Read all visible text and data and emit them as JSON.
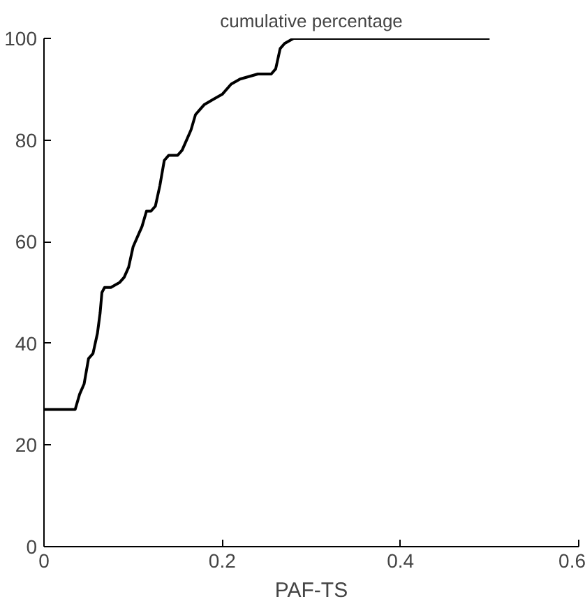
{
  "chart_data": {
    "type": "line",
    "title": "cumulative percentage",
    "xlabel": "PAF-TS",
    "x": [
      0,
      0.035,
      0.04,
      0.045,
      0.05,
      0.055,
      0.06,
      0.063,
      0.065,
      0.068,
      0.075,
      0.085,
      0.09,
      0.095,
      0.1,
      0.105,
      0.11,
      0.115,
      0.12,
      0.125,
      0.13,
      0.135,
      0.14,
      0.15,
      0.155,
      0.16,
      0.165,
      0.17,
      0.175,
      0.18,
      0.19,
      0.2,
      0.21,
      0.22,
      0.24,
      0.255,
      0.26,
      0.265,
      0.27,
      0.28,
      0.3,
      0.35,
      0.4,
      0.45,
      0.5
    ],
    "values": [
      27,
      27,
      30,
      32,
      37,
      38,
      42,
      46,
      50,
      51,
      51,
      52,
      53,
      55,
      59,
      61,
      63,
      66,
      66,
      67,
      71,
      76,
      77,
      77,
      78,
      80,
      82,
      85,
      86,
      87,
      88,
      89,
      91,
      92,
      93,
      93,
      94,
      98,
      99,
      100,
      100,
      100,
      100,
      100,
      100
    ],
    "color": "#000000",
    "xlim": [
      0,
      0.6
    ],
    "ylim": [
      0,
      100
    ],
    "xticks": [
      0,
      {
        "value": 0.2,
        "label": "0.2"
      },
      {
        "value": 0.4,
        "label": "0.4"
      },
      {
        "value": 0.6,
        "label": "0.6"
      }
    ],
    "yticks": [
      0,
      20,
      40,
      60,
      80,
      100
    ],
    "grid": false
  }
}
